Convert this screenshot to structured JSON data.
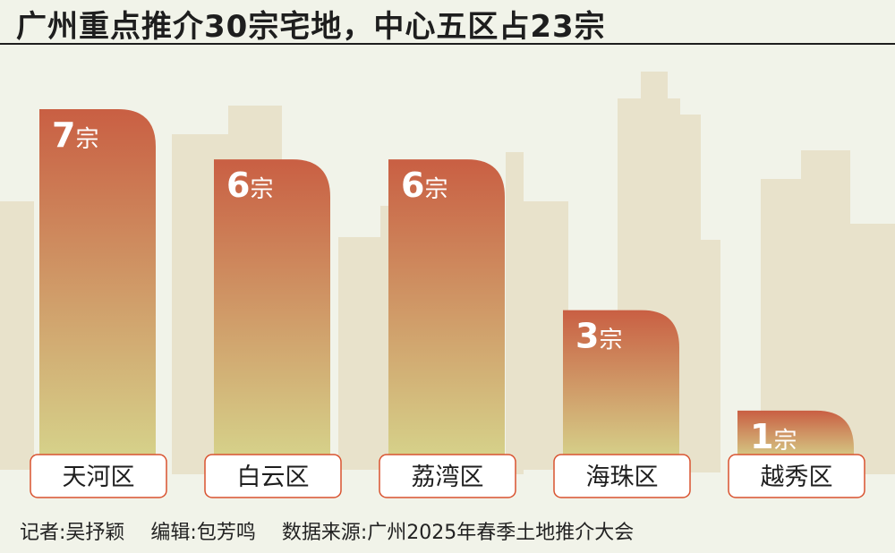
{
  "title": "广州重点推介30宗宅地，中心五区占23宗",
  "footer": {
    "reporter": "记者:吴抒颖",
    "editor": "编辑:包芳鸣",
    "source": "数据来源:广州2025年春季土地推介大会"
  },
  "colors": {
    "bar_top": "#c95f43",
    "bar_bottom": "#d6d38b",
    "label_border": "#d9522f",
    "skyline": "#e8e2cb"
  },
  "chart_data": {
    "type": "bar",
    "title": "广州重点推介30宗宅地，中心五区占23宗",
    "categories": [
      "天河区",
      "白云区",
      "荔湾区",
      "海珠区",
      "越秀区"
    ],
    "values": [
      7,
      6,
      6,
      3,
      1
    ],
    "unit": "宗",
    "xlabel": "",
    "ylabel": "",
    "ylim": [
      0,
      7
    ],
    "grid": false,
    "legend": "none"
  }
}
